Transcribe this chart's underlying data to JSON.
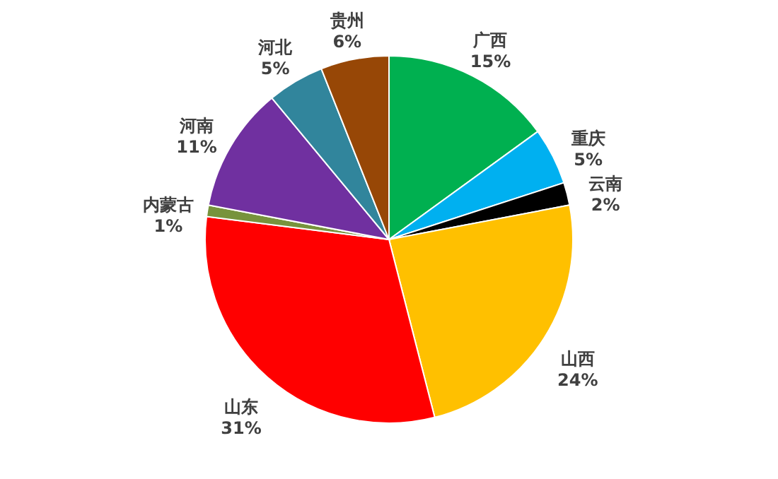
{
  "chart_data": {
    "type": "pie",
    "categories": [
      "广西",
      "重庆",
      "云南",
      "山西",
      "山东",
      "内蒙古",
      "河南",
      "河北",
      "贵州"
    ],
    "values": [
      15,
      5,
      2,
      24,
      31,
      1,
      11,
      5,
      6
    ],
    "value_labels": [
      "15%",
      "5%",
      "2%",
      "24%",
      "31%",
      "1%",
      "11%",
      "5%",
      "6%"
    ],
    "colors": [
      "#00b050",
      "#00b0f0",
      "#000000",
      "#ffc000",
      "#ff0000",
      "#77933c",
      "#7030a0",
      "#31859c",
      "#974706"
    ],
    "legend": false
  }
}
